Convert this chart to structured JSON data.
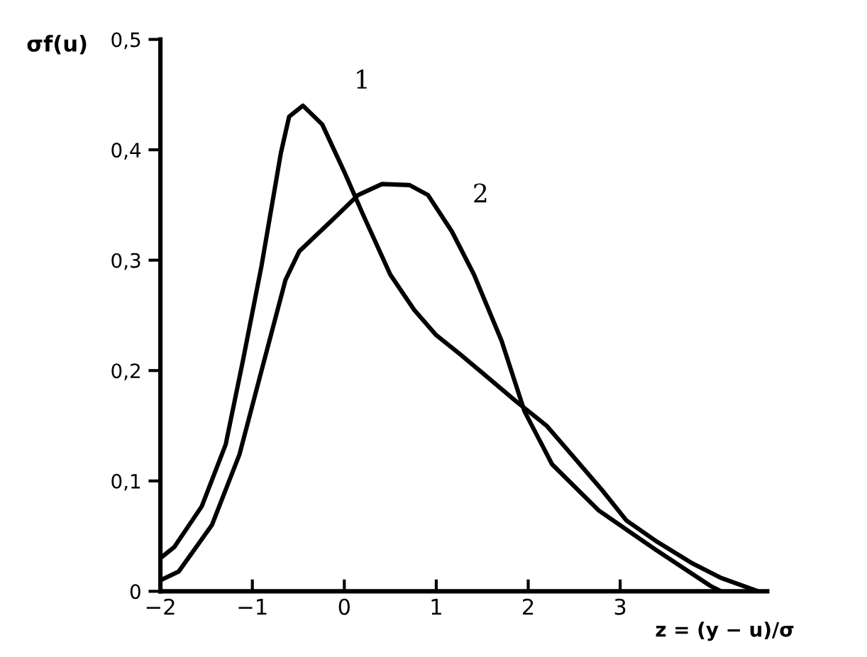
{
  "chart_data": {
    "type": "line",
    "xlabel": "z = (y − u)/σ",
    "ylabel": "σf(u)",
    "xlim": [
      -2,
      4.6
    ],
    "ylim": [
      0,
      0.5
    ],
    "xticks": [
      {
        "value": -2,
        "label": "−2"
      },
      {
        "value": -1,
        "label": "−1"
      },
      0,
      1,
      2,
      3
    ],
    "yticks": [
      0,
      {
        "value": 0.1,
        "label": "0,1"
      },
      {
        "value": 0.2,
        "label": "0,2"
      },
      {
        "value": 0.3,
        "label": "0,3"
      },
      {
        "value": 0.4,
        "label": "0,4"
      },
      {
        "value": 0.5,
        "label": "0,5"
      }
    ],
    "grid": false,
    "legend": false,
    "marker": "none",
    "line_style": "solid",
    "series": [
      {
        "name": "1",
        "color": "#000000",
        "x": [
          -2,
          -1.85,
          -1.55,
          -1.29,
          -1.1,
          -0.9,
          -0.69,
          -0.6,
          -0.45,
          -0.24,
          0,
          0.2,
          0.5,
          0.76,
          1.0,
          1.27,
          1.5,
          1.87,
          2.2,
          2.47,
          2.8,
          3.07,
          3.4,
          3.77,
          4.1,
          4.5
        ],
        "values": [
          0.03,
          0.04,
          0.077,
          0.133,
          0.21,
          0.295,
          0.397,
          0.43,
          0.44,
          0.423,
          0.38,
          0.342,
          0.287,
          0.255,
          0.232,
          0.214,
          0.198,
          0.172,
          0.15,
          0.124,
          0.092,
          0.064,
          0.045,
          0.026,
          0.012,
          0.0
        ]
      },
      {
        "name": "2",
        "color": "#000000",
        "x": [
          -2,
          -1.8,
          -1.44,
          -1.14,
          -0.9,
          -0.64,
          -0.49,
          -0.11,
          0.15,
          0.41,
          0.71,
          0.91,
          1.17,
          1.41,
          1.71,
          1.96,
          2.26,
          2.77,
          3.38,
          3.98,
          4.1
        ],
        "values": [
          0.01,
          0.018,
          0.06,
          0.124,
          0.2,
          0.282,
          0.308,
          0.338,
          0.359,
          0.369,
          0.368,
          0.359,
          0.326,
          0.287,
          0.227,
          0.163,
          0.115,
          0.073,
          0.038,
          0.005,
          0.0
        ]
      }
    ]
  }
}
